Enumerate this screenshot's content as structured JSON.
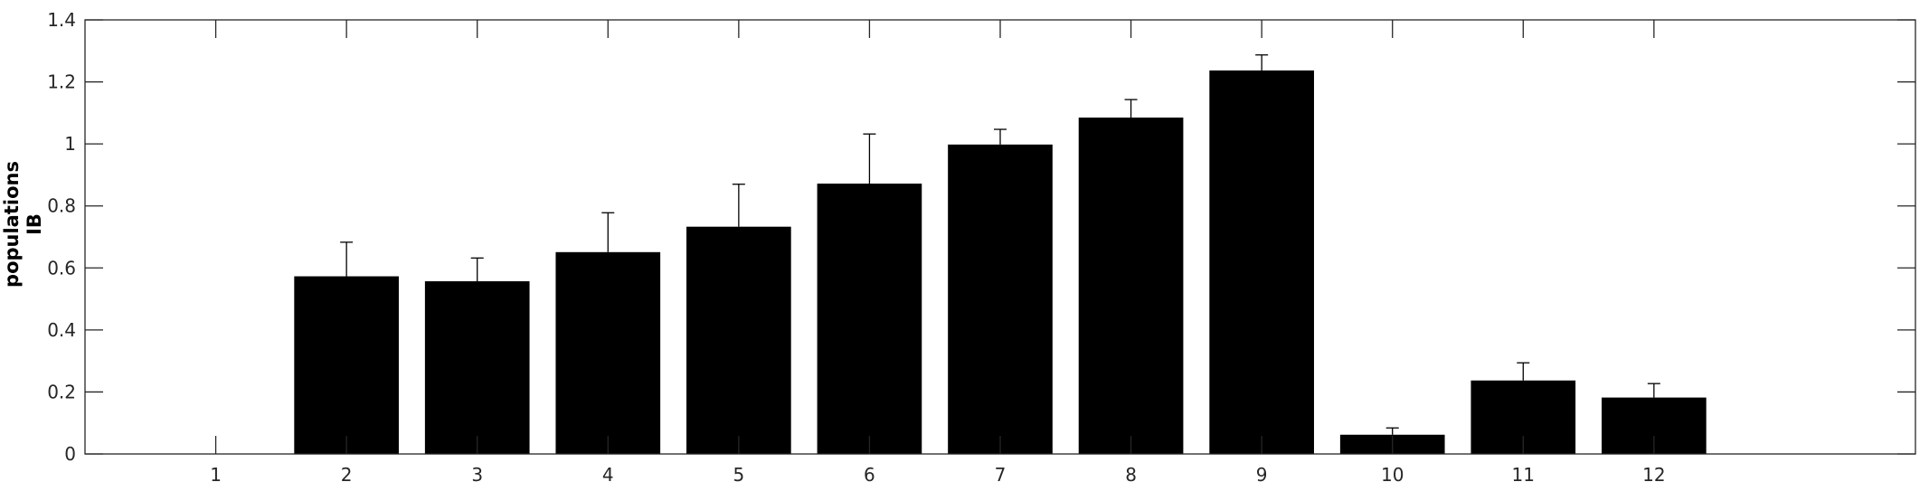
{
  "chart_data": {
    "type": "bar",
    "title": "",
    "xlabel": "",
    "ylabel_lines": [
      "populations",
      "IB"
    ],
    "categories": [
      "1",
      "2",
      "3",
      "4",
      "5",
      "6",
      "7",
      "8",
      "9",
      "10",
      "11",
      "12"
    ],
    "x_range": [
      0,
      14
    ],
    "values": [
      0,
      0.573,
      0.557,
      0.651,
      0.733,
      0.872,
      0.998,
      1.085,
      1.237,
      0.062,
      0.237,
      0.182
    ],
    "errors": [
      0,
      0.11,
      0.075,
      0.127,
      0.137,
      0.16,
      0.049,
      0.058,
      0.05,
      0.022,
      0.057,
      0.045
    ],
    "ylim": [
      0,
      1.4
    ],
    "yticks": [
      0,
      0.2,
      0.4,
      0.6,
      0.8,
      1,
      1.2,
      1.4
    ],
    "ytick_labels": [
      "0",
      "0.2",
      "0.4",
      "0.6",
      "0.8",
      "1",
      "1.2",
      "1.4"
    ],
    "grid": false,
    "legend": "none",
    "bar_color": "#000000",
    "axis_color": "#262626"
  }
}
